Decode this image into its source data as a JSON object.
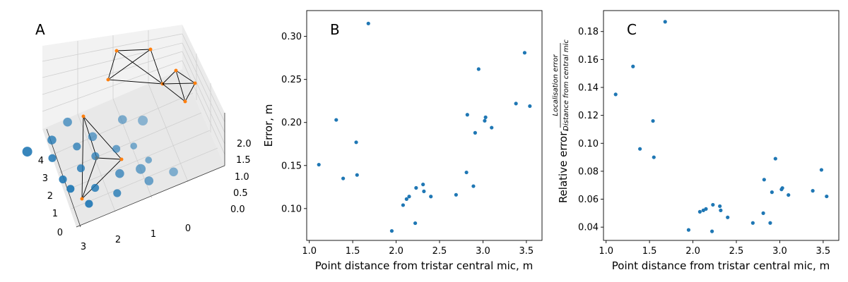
{
  "colors": {
    "point": "#1f77b4",
    "mic": "#ff7f0e",
    "axis": "#000000",
    "pane": "#f2f2f2",
    "grid": "#cccccc"
  },
  "chart_data": [
    {
      "type": "scatter3d",
      "panel_label": "A",
      "x_ticks": [
        "0",
        "1",
        "2",
        "3"
      ],
      "y_ticks": [
        "0",
        "1",
        "2",
        "3",
        "4"
      ],
      "z_ticks": [
        "0.0",
        "0.5",
        "1.0",
        "1.5",
        "2.0"
      ],
      "description_points": "blue spheres (measurement points) sized by error; orange markers joined by black lines are microphone arrays",
      "points": [
        {
          "x": 2.4,
          "y": 2.5,
          "z": 1.0,
          "size": 7
        },
        {
          "x": 1.8,
          "y": 2.4,
          "z": 1.1,
          "size": 6
        },
        {
          "x": 1.2,
          "y": 2.6,
          "z": 1.3,
          "size": 6
        },
        {
          "x": 2.2,
          "y": 1.9,
          "z": 0.9,
          "size": 5
        },
        {
          "x": 1.6,
          "y": 1.8,
          "z": 1.0,
          "size": 5
        },
        {
          "x": 1.0,
          "y": 2.0,
          "z": 0.9,
          "size": 6
        },
        {
          "x": 0.5,
          "y": 1.6,
          "z": 1.4,
          "size": 6
        },
        {
          "x": 2.4,
          "y": 1.3,
          "z": 0.5,
          "size": 5
        },
        {
          "x": 1.9,
          "y": 1.3,
          "z": 0.6,
          "size": 5
        },
        {
          "x": 1.5,
          "y": 1.3,
          "z": 0.8,
          "size": 5
        },
        {
          "x": 1.0,
          "y": 1.2,
          "z": 0.8,
          "size": 5
        },
        {
          "x": 0.6,
          "y": 1.1,
          "z": 0.7,
          "size": 4
        },
        {
          "x": 0.1,
          "y": 1.4,
          "z": 1.2,
          "size": 7
        },
        {
          "x": 2.6,
          "y": 0.8,
          "z": 0.5,
          "size": 5
        },
        {
          "x": 2.0,
          "y": 0.7,
          "z": 0.2,
          "size": 5
        },
        {
          "x": 1.4,
          "y": 0.6,
          "z": 0.4,
          "size": 6
        },
        {
          "x": 0.9,
          "y": 0.5,
          "z": 0.3,
          "size": 7
        },
        {
          "x": 0.6,
          "y": 0.6,
          "z": 0.4,
          "size": 4
        },
        {
          "x": 2.5,
          "y": 0.3,
          "z": 0.1,
          "size": 5
        },
        {
          "x": 1.8,
          "y": 0.2,
          "z": 0.1,
          "size": 5
        },
        {
          "x": 1.0,
          "y": 0.1,
          "z": 0.1,
          "size": 6
        },
        {
          "x": 0.4,
          "y": 0.0,
          "z": 0.1,
          "size": 6
        }
      ]
    },
    {
      "type": "scatter",
      "panel_label": "B",
      "xlabel": "Point distance from tristar central mic, m",
      "ylabel": "Error, m",
      "xlim": [
        0.97,
        3.68
      ],
      "ylim": [
        0.063,
        0.33
      ],
      "x_ticks": [
        1.0,
        1.5,
        2.0,
        2.5,
        3.0,
        3.5
      ],
      "x_tick_labels": [
        "1.0",
        "1.5",
        "2.0",
        "2.5",
        "3.0",
        "3.5"
      ],
      "y_ticks": [
        0.1,
        0.15,
        0.2,
        0.25,
        0.3
      ],
      "y_tick_labels": [
        "0.10",
        "0.15",
        "0.20",
        "0.25",
        "0.30"
      ],
      "points": [
        [
          1.11,
          0.151
        ],
        [
          1.31,
          0.203
        ],
        [
          1.39,
          0.135
        ],
        [
          1.54,
          0.177
        ],
        [
          1.55,
          0.139
        ],
        [
          1.68,
          0.315
        ],
        [
          1.95,
          0.074
        ],
        [
          2.08,
          0.104
        ],
        [
          2.12,
          0.111
        ],
        [
          2.15,
          0.114
        ],
        [
          2.22,
          0.083
        ],
        [
          2.23,
          0.124
        ],
        [
          2.31,
          0.128
        ],
        [
          2.32,
          0.12
        ],
        [
          2.4,
          0.114
        ],
        [
          2.69,
          0.116
        ],
        [
          2.81,
          0.142
        ],
        [
          2.82,
          0.209
        ],
        [
          2.89,
          0.126
        ],
        [
          2.91,
          0.188
        ],
        [
          2.95,
          0.262
        ],
        [
          3.02,
          0.202
        ],
        [
          3.03,
          0.206
        ],
        [
          3.1,
          0.194
        ],
        [
          3.38,
          0.222
        ],
        [
          3.48,
          0.281
        ],
        [
          3.54,
          0.219
        ]
      ]
    },
    {
      "type": "scatter",
      "panel_label": "C",
      "xlabel": "Point distance from tristar central mic, m",
      "ylabel": "Relative error,",
      "ylabel_fraction_numerator": "Localisation error",
      "ylabel_fraction_denominator": "Distance from central mic",
      "xlim": [
        0.97,
        3.68
      ],
      "ylim": [
        0.0305,
        0.195
      ],
      "x_ticks": [
        1.0,
        1.5,
        2.0,
        2.5,
        3.0,
        3.5
      ],
      "x_tick_labels": [
        "1.0",
        "1.5",
        "2.0",
        "2.5",
        "3.0",
        "3.5"
      ],
      "y_ticks": [
        0.04,
        0.06,
        0.08,
        0.1,
        0.12,
        0.14,
        0.16,
        0.18
      ],
      "y_tick_labels": [
        "0.04",
        "0.06",
        "0.08",
        "0.10",
        "0.12",
        "0.14",
        "0.16",
        "0.18"
      ],
      "points": [
        [
          1.11,
          0.135
        ],
        [
          1.31,
          0.155
        ],
        [
          1.39,
          0.096
        ],
        [
          1.54,
          0.116
        ],
        [
          1.55,
          0.09
        ],
        [
          1.68,
          0.187
        ],
        [
          1.95,
          0.038
        ],
        [
          2.08,
          0.051
        ],
        [
          2.12,
          0.052
        ],
        [
          2.15,
          0.053
        ],
        [
          2.22,
          0.037
        ],
        [
          2.23,
          0.056
        ],
        [
          2.31,
          0.055
        ],
        [
          2.32,
          0.052
        ],
        [
          2.4,
          0.047
        ],
        [
          2.69,
          0.043
        ],
        [
          2.81,
          0.05
        ],
        [
          2.82,
          0.074
        ],
        [
          2.89,
          0.043
        ],
        [
          2.91,
          0.065
        ],
        [
          2.95,
          0.089
        ],
        [
          3.02,
          0.067
        ],
        [
          3.03,
          0.068
        ],
        [
          3.1,
          0.063
        ],
        [
          3.38,
          0.066
        ],
        [
          3.48,
          0.081
        ],
        [
          3.54,
          0.062
        ]
      ]
    }
  ]
}
